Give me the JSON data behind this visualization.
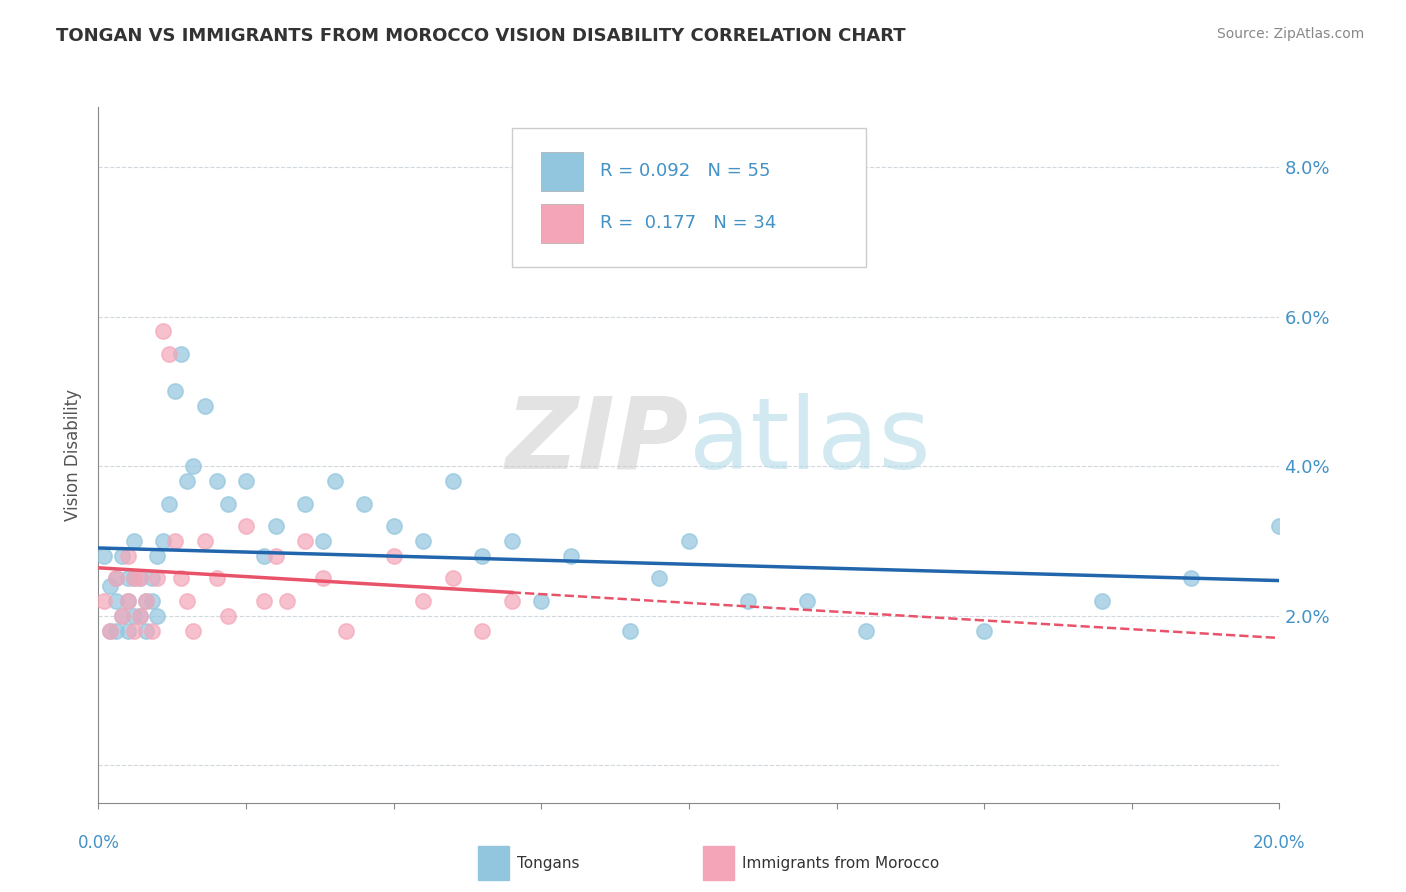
{
  "title": "TONGAN VS IMMIGRANTS FROM MOROCCO VISION DISABILITY CORRELATION CHART",
  "source": "Source: ZipAtlas.com",
  "ylabel": "Vision Disability",
  "xlim": [
    0.0,
    0.2
  ],
  "ylim": [
    -0.005,
    0.088
  ],
  "color_blue": "#92c5de",
  "color_pink": "#f4a6b8",
  "trendline_blue": "#2166ac",
  "trendline_pink": "#e8536a",
  "watermark_color": "#d8e8f0",
  "background_color": "#ffffff",
  "grid_color": "#d0d8e0",
  "axis_color": "#888888",
  "label_color": "#4292c6",
  "title_color": "#333333",
  "source_color": "#888888",
  "blue_x": [
    0.001,
    0.002,
    0.002,
    0.003,
    0.003,
    0.003,
    0.004,
    0.004,
    0.005,
    0.005,
    0.005,
    0.006,
    0.006,
    0.006,
    0.007,
    0.007,
    0.008,
    0.008,
    0.009,
    0.009,
    0.01,
    0.01,
    0.011,
    0.012,
    0.013,
    0.014,
    0.015,
    0.016,
    0.018,
    0.02,
    0.022,
    0.025,
    0.028,
    0.03,
    0.035,
    0.038,
    0.04,
    0.045,
    0.05,
    0.055,
    0.06,
    0.065,
    0.07,
    0.075,
    0.08,
    0.09,
    0.095,
    0.1,
    0.11,
    0.12,
    0.13,
    0.15,
    0.17,
    0.185,
    0.2
  ],
  "blue_y": [
    0.028,
    0.024,
    0.018,
    0.022,
    0.025,
    0.018,
    0.02,
    0.028,
    0.022,
    0.018,
    0.025,
    0.02,
    0.025,
    0.03,
    0.02,
    0.025,
    0.022,
    0.018,
    0.022,
    0.025,
    0.028,
    0.02,
    0.03,
    0.035,
    0.05,
    0.055,
    0.038,
    0.04,
    0.048,
    0.038,
    0.035,
    0.038,
    0.028,
    0.032,
    0.035,
    0.03,
    0.038,
    0.035,
    0.032,
    0.03,
    0.038,
    0.028,
    0.03,
    0.022,
    0.028,
    0.018,
    0.025,
    0.03,
    0.022,
    0.022,
    0.018,
    0.018,
    0.022,
    0.025,
    0.032
  ],
  "pink_x": [
    0.001,
    0.002,
    0.003,
    0.004,
    0.005,
    0.005,
    0.006,
    0.006,
    0.007,
    0.007,
    0.008,
    0.009,
    0.01,
    0.011,
    0.012,
    0.013,
    0.014,
    0.015,
    0.016,
    0.018,
    0.02,
    0.022,
    0.025,
    0.028,
    0.03,
    0.032,
    0.035,
    0.038,
    0.042,
    0.05,
    0.055,
    0.06,
    0.065,
    0.07
  ],
  "pink_y": [
    0.022,
    0.018,
    0.025,
    0.02,
    0.022,
    0.028,
    0.025,
    0.018,
    0.025,
    0.02,
    0.022,
    0.018,
    0.025,
    0.058,
    0.055,
    0.03,
    0.025,
    0.022,
    0.018,
    0.03,
    0.025,
    0.02,
    0.032,
    0.022,
    0.028,
    0.022,
    0.03,
    0.025,
    0.018,
    0.028,
    0.022,
    0.025,
    0.018,
    0.022
  ]
}
